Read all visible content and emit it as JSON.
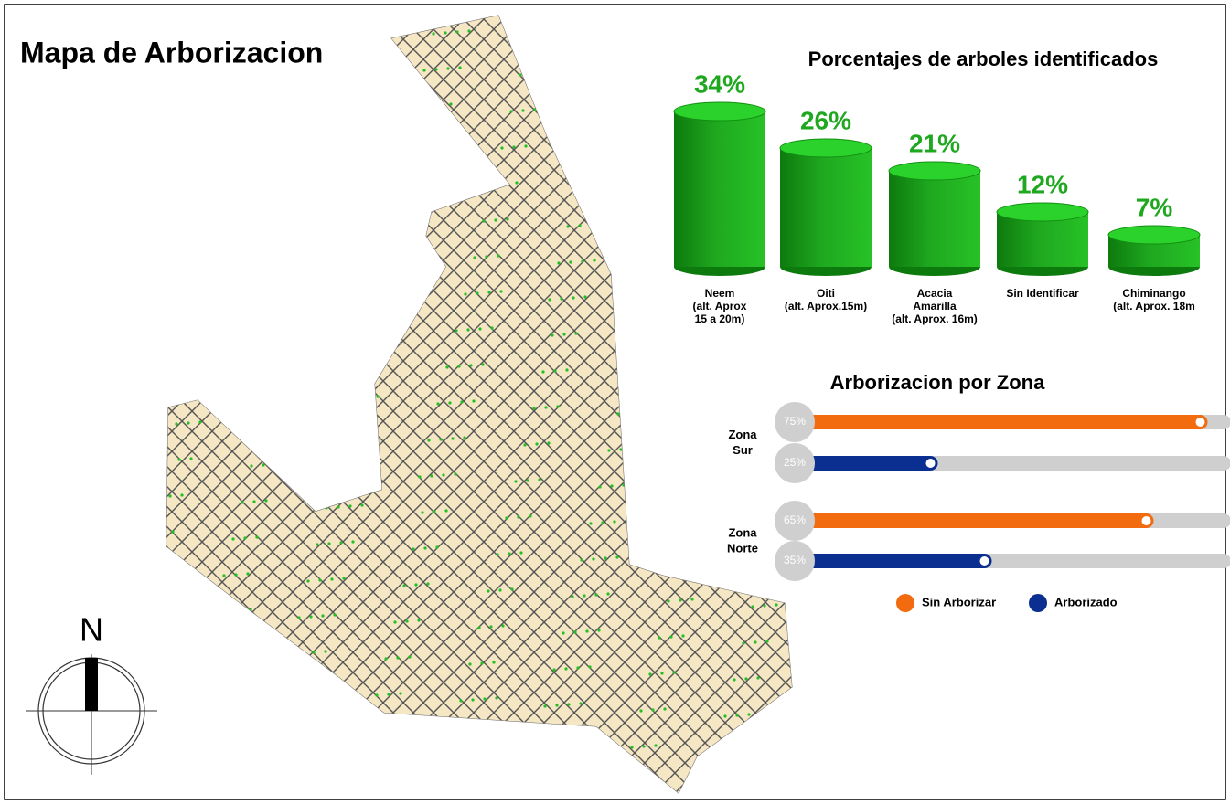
{
  "title": "Mapa de Arborizacion",
  "north_label": "N",
  "chart_data": [
    {
      "type": "cylinder-bar",
      "title": "Porcentajes de arboles identificados",
      "categories": [
        [
          "Neem",
          "(alt. Aprox",
          "15 a 20m)"
        ],
        [
          "Oiti",
          "(alt. Aprox.15m)"
        ],
        [
          "Acacia",
          "Amarilla",
          "(alt. Aprox. 16m)"
        ],
        [
          "Sin Identificar"
        ],
        [
          "Chiminango",
          "(alt. Aprox. 18m"
        ]
      ],
      "values": [
        34,
        26,
        21,
        12,
        7
      ],
      "value_labels": [
        "34%",
        "26%",
        "21%",
        "12%",
        "7%"
      ],
      "color": "#1fa81f"
    },
    {
      "type": "progress-bar",
      "title": "Arborizacion por Zona",
      "categories": [
        [
          "Zona",
          "Sur"
        ],
        [
          "Zona",
          "Norte"
        ]
      ],
      "series": [
        {
          "name": "Sin Arborizar",
          "color": "#f26b0f",
          "values": [
            75,
            65
          ],
          "value_labels": [
            "75%",
            "65%"
          ]
        },
        {
          "name": "Arborizado",
          "color": "#0b2f91",
          "values": [
            25,
            35
          ],
          "value_labels": [
            "25%",
            "35%"
          ]
        }
      ]
    }
  ]
}
